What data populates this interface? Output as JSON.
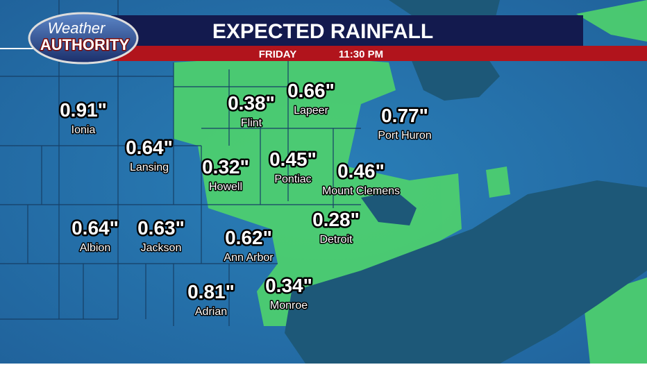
{
  "header": {
    "logo_top": "Weather",
    "logo_bottom": "AUTHORITY",
    "title": "EXPECTED RAINFALL",
    "day": "FRIDAY",
    "time": "11:30 PM"
  },
  "cities": [
    {
      "name": "Ionia",
      "amount": "0.91\""
    },
    {
      "name": "Lansing",
      "amount": "0.64\""
    },
    {
      "name": "Flint",
      "amount": "0.38\""
    },
    {
      "name": "Lapeer",
      "amount": "0.66\""
    },
    {
      "name": "Port Huron",
      "amount": "0.77\""
    },
    {
      "name": "Howell",
      "amount": "0.32\""
    },
    {
      "name": "Pontiac",
      "amount": "0.45\""
    },
    {
      "name": "Mount Clemens",
      "amount": "0.46\""
    },
    {
      "name": "Albion",
      "amount": "0.64\""
    },
    {
      "name": "Jackson",
      "amount": "0.63\""
    },
    {
      "name": "Detroit",
      "amount": "0.28\""
    },
    {
      "name": "Ann Arbor",
      "amount": "0.62\""
    },
    {
      "name": "Adrian",
      "amount": "0.81\""
    },
    {
      "name": "Monroe",
      "amount": "0.34\""
    }
  ]
}
